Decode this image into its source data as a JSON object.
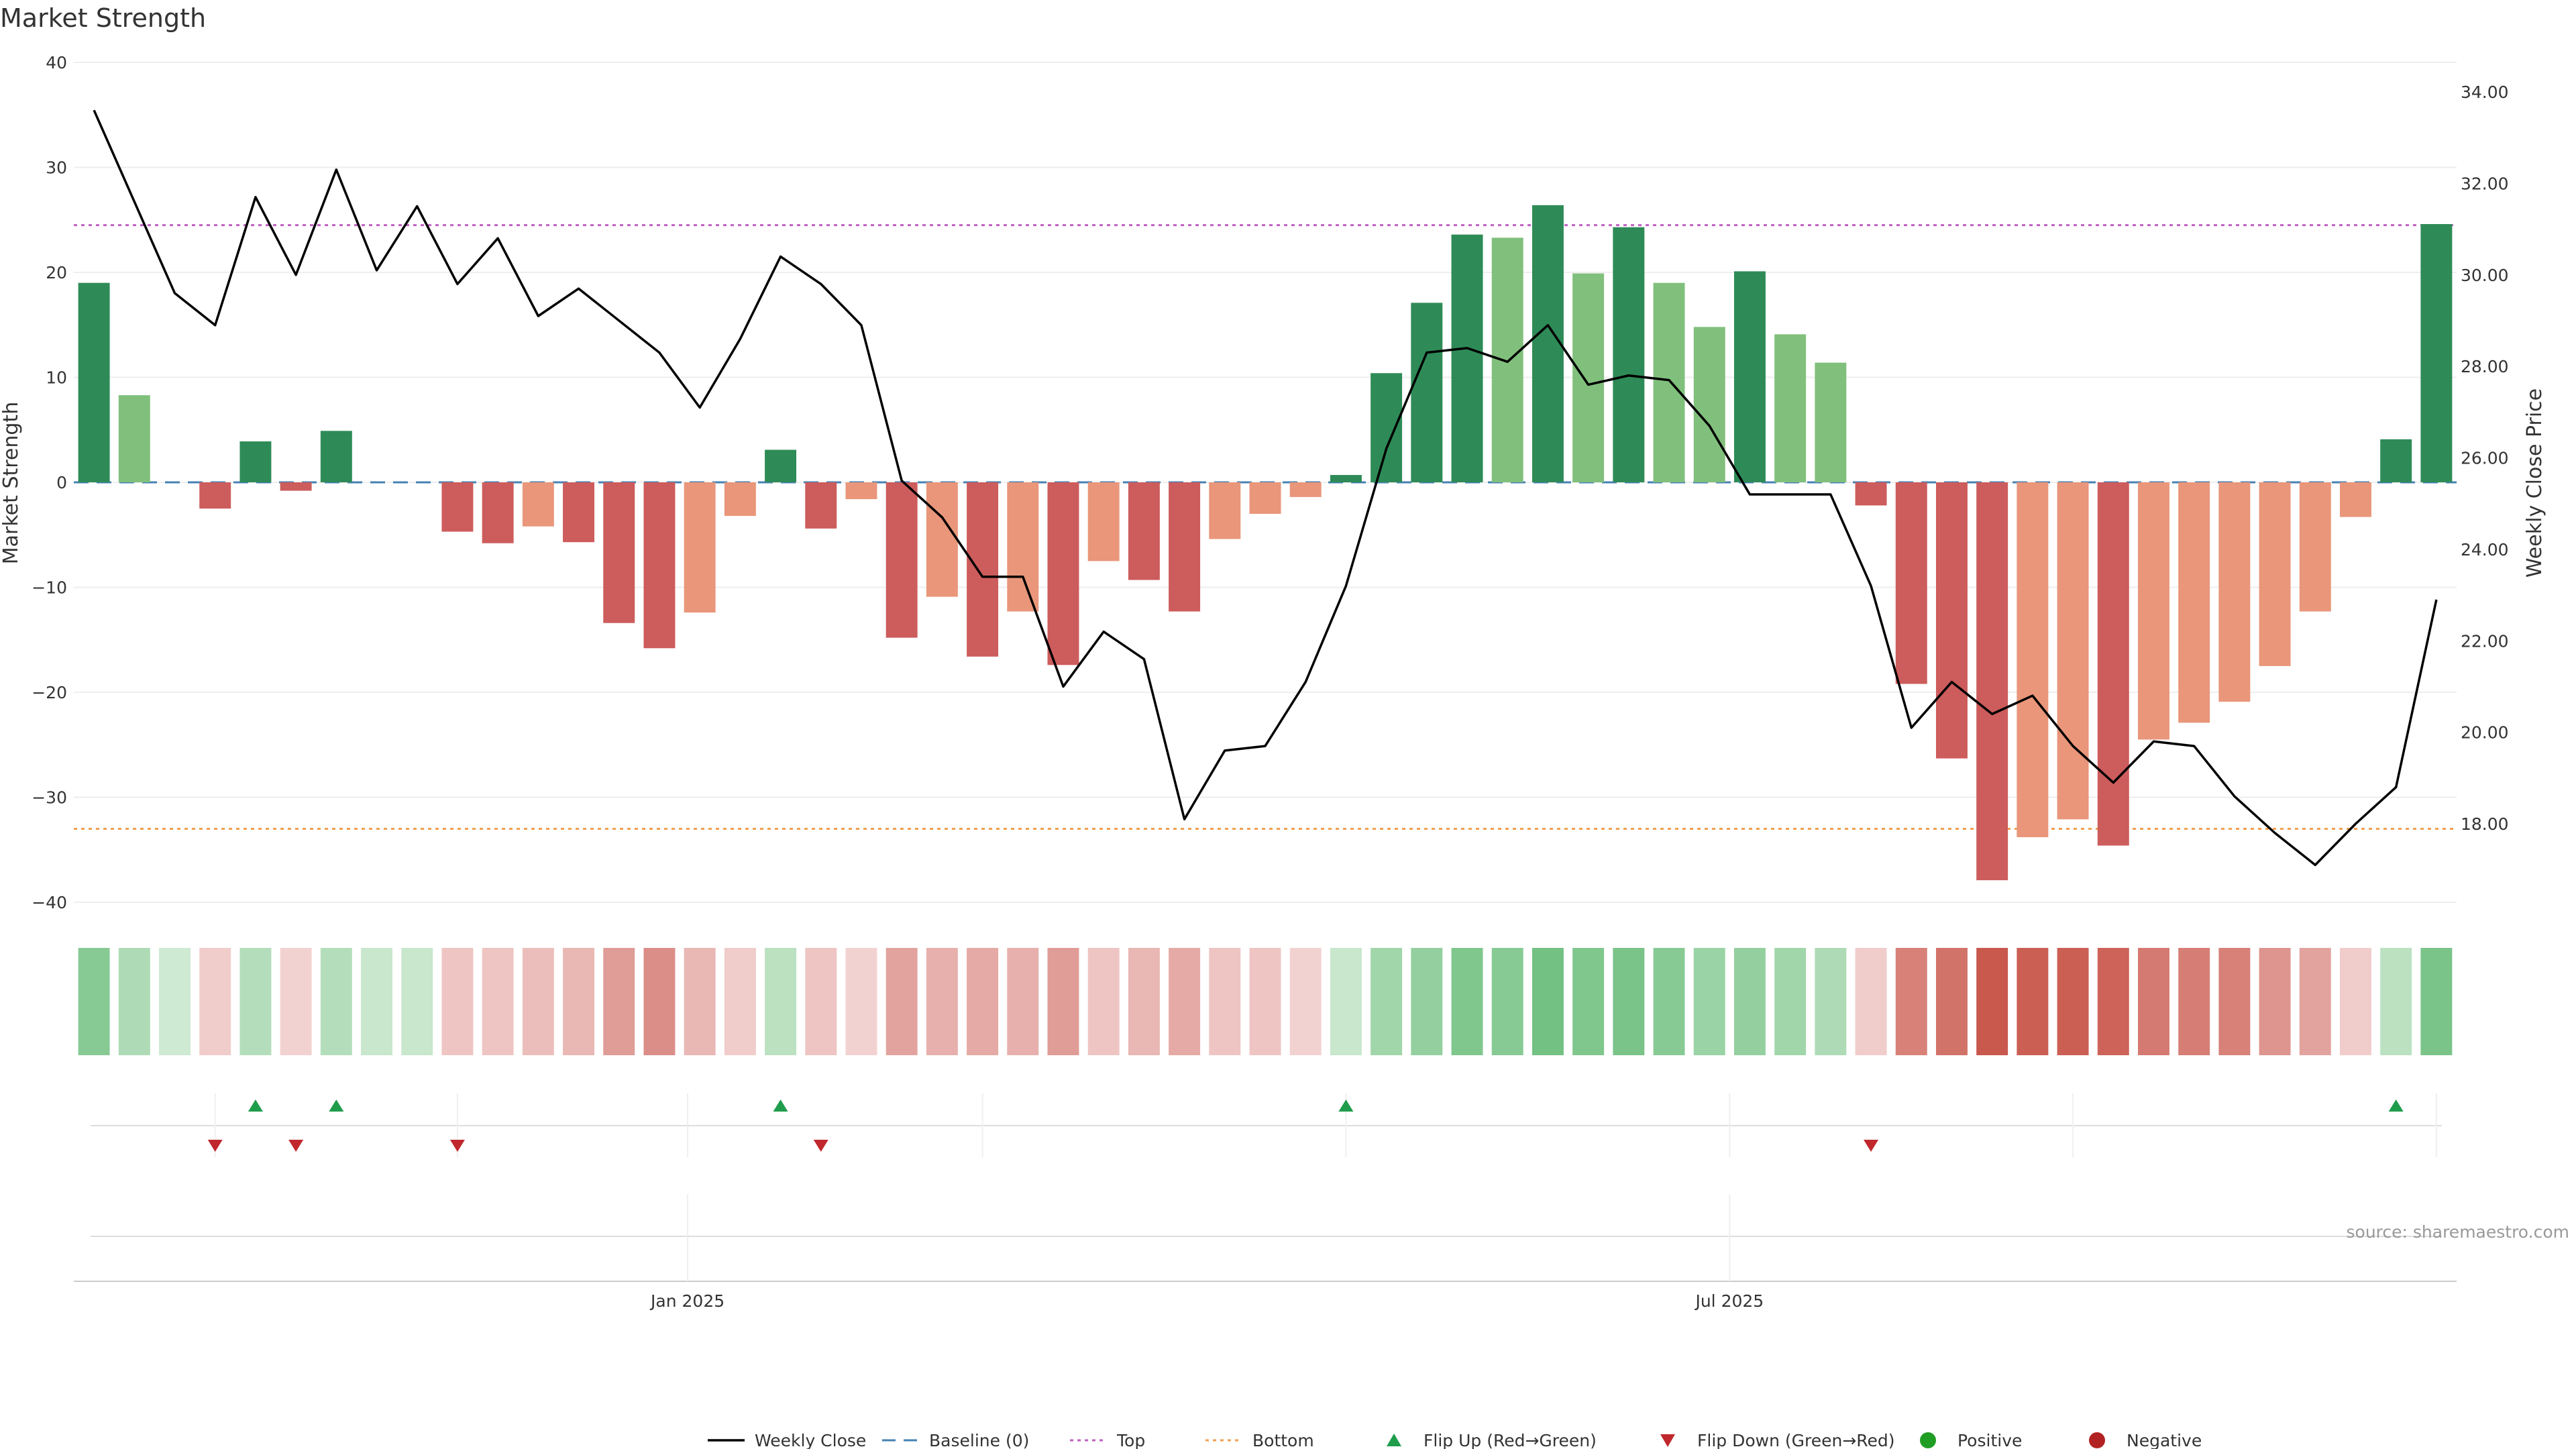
{
  "chart_data": {
    "type": "bar",
    "title": "Market Strength",
    "ylabel_left": "Market Strength",
    "ylabel_right": "Weekly Close Price",
    "ylim_left": [
      -40,
      40
    ],
    "yticks_left": [
      -40,
      -30,
      -20,
      -10,
      0,
      10,
      20,
      30,
      40
    ],
    "ylim_right": [
      16.0,
      34.0
    ],
    "yticks_right": [
      "18.00",
      "20.00",
      "22.00",
      "24.00",
      "26.00",
      "28.00",
      "30.00",
      "32.00",
      "34.00"
    ],
    "x_tick_labels": [
      {
        "label": "Jan 2025",
        "week_index": 14.7
      },
      {
        "label": "Jul 2025",
        "week_index": 40.5
      }
    ],
    "top_line": 24.5,
    "bottom_line": -33,
    "strength": [
      19,
      8.3,
      0,
      -2.5,
      3.9,
      -0.8,
      4.9,
      0,
      0,
      -4.7,
      -5.8,
      -4.2,
      -5.7,
      -13.4,
      -15.8,
      -12.4,
      -3.2,
      3.1,
      -4.4,
      -1.6,
      -14.8,
      -10.9,
      -16.6,
      -12.3,
      -17.4,
      -7.5,
      -9.3,
      -12.3,
      -5.4,
      -3,
      -1.4,
      0.7,
      10.4,
      17.1,
      23.6,
      23.3,
      26.4,
      19.9,
      24.3,
      19,
      14.8,
      20.1,
      14.1,
      11.4,
      -2.2,
      -19.2,
      -26.3,
      -37.9,
      -33.8,
      -32.1,
      -34.6,
      -24.5,
      -22.9,
      -20.9,
      -17.5,
      -12.3,
      -3.3,
      4.1,
      24.6
    ],
    "weekly_close": [
      33.6,
      31.6,
      29.6,
      28.9,
      31.7,
      30.0,
      32.3,
      30.1,
      31.5,
      29.8,
      30.8,
      29.1,
      29.7,
      29.0,
      28.3,
      27.1,
      28.6,
      30.4,
      29.8,
      28.9,
      25.5,
      24.7,
      23.4,
      23.4,
      21.0,
      22.2,
      21.6,
      18.1,
      19.6,
      19.7,
      21.1,
      23.2,
      26.2,
      28.3,
      28.4,
      28.1,
      28.9,
      27.6,
      27.8,
      27.7,
      26.7,
      25.2,
      25.2,
      25.2,
      23.2,
      20.1,
      21.1,
      20.4,
      20.8,
      19.7,
      18.9,
      19.8,
      19.7,
      18.6,
      17.8,
      17.1,
      18.0,
      18.8,
      22.9
    ],
    "flip_up_weeks": [
      4,
      6,
      17,
      31,
      57
    ],
    "flip_down_weeks": [
      3,
      5,
      9,
      18,
      44
    ],
    "heat_levels": [
      0.75,
      0.45,
      0.2,
      0.15,
      0.4,
      0.1,
      0.4,
      0.25,
      0.25,
      0.2,
      0.2,
      0.25,
      0.3,
      0.5,
      0.6,
      0.3,
      0.15,
      0.35,
      0.2,
      0.1,
      0.45,
      0.35,
      0.4,
      0.35,
      0.5,
      0.2,
      0.3,
      0.4,
      0.2,
      0.2,
      0.1,
      0.25,
      0.55,
      0.65,
      0.8,
      0.75,
      0.9,
      0.8,
      0.85,
      0.75,
      0.6,
      0.65,
      0.55,
      0.45,
      0.15,
      0.7,
      0.8,
      1.0,
      0.95,
      0.95,
      0.92,
      0.75,
      0.72,
      0.7,
      0.55,
      0.45,
      0.15,
      0.35,
      0.85
    ],
    "colors": {
      "strong_green": "#2e8b57",
      "light_green": "#80c07c",
      "strong_red": "#cd5c5c",
      "light_red": "#e9967a",
      "top_line": "#c060c0",
      "bottom_line": "#f0a050",
      "baseline": "#4682b4",
      "flip_up": "#1f9d4c",
      "flip_down": "#c0282d",
      "positive": "#1f9d24",
      "negative": "#b22222"
    },
    "legend": [
      {
        "label": "Weekly Close",
        "kind": "line-solid"
      },
      {
        "label": "Baseline (0)",
        "kind": "line-dashed"
      },
      {
        "label": "Top",
        "kind": "line-dotted-top"
      },
      {
        "label": "Bottom",
        "kind": "line-dotted-bottom"
      },
      {
        "label": "Flip Up (Red→Green)",
        "kind": "tri-up"
      },
      {
        "label": "Flip Down (Green→Red)",
        "kind": "tri-down"
      },
      {
        "label": "Positive",
        "kind": "dot-positive"
      },
      {
        "label": "Negative",
        "kind": "dot-negative"
      }
    ],
    "legend_position": "bottom-center",
    "grid": true
  },
  "source_text": "source: sharemaestro.com"
}
